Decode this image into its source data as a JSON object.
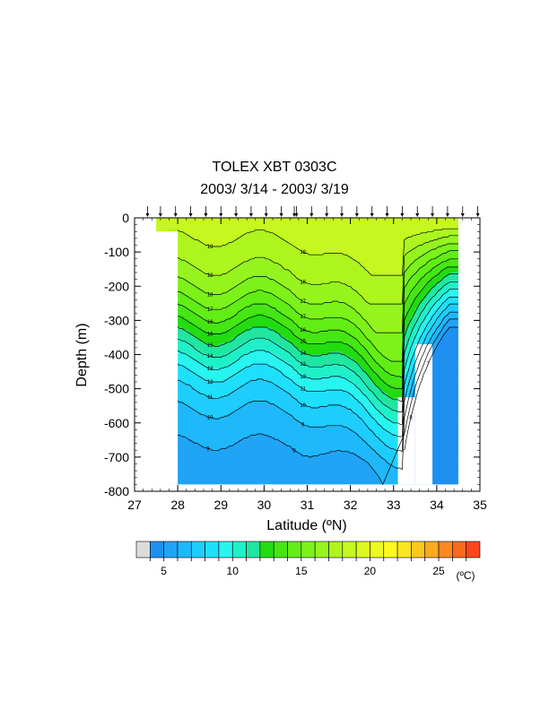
{
  "chart_data": {
    "type": "heatmap",
    "title": "TOLEX XBT 0303C",
    "subtitle": "2003/ 3/14 - 2003/ 3/19",
    "xlabel": "Latitude (ºN)",
    "ylabel": "Depth (m)",
    "xlim": [
      27,
      35
    ],
    "ylim": [
      -800,
      0
    ],
    "x_ticks": [
      "27",
      "28",
      "29",
      "30",
      "31",
      "32",
      "33",
      "34",
      "35"
    ],
    "y_ticks": [
      "0",
      "-100",
      "-200",
      "-300",
      "-400",
      "-500",
      "-600",
      "-700",
      "-800"
    ],
    "station_latitudes": [
      27.3,
      27.6,
      27.95,
      28.3,
      28.65,
      29.0,
      29.35,
      29.7,
      30.05,
      30.4,
      30.7,
      30.75,
      31.1,
      31.45,
      31.8,
      32.15,
      32.5,
      32.85,
      33.2,
      33.55,
      33.9,
      34.25,
      34.6,
      34.95
    ],
    "colorbar": {
      "levels": [
        4,
        5,
        6,
        7,
        8,
        9,
        10,
        11,
        12,
        13,
        14,
        15,
        16,
        17,
        18,
        19,
        20,
        21,
        22,
        23,
        24,
        25,
        26,
        27
      ],
      "colors": [
        "#dcdcdc",
        "#1e90f0",
        "#20a4f6",
        "#1eb8fb",
        "#1ecdfd",
        "#1ee0fd",
        "#28f4f0",
        "#20f0c8",
        "#20e6a0",
        "#22dc10",
        "#46e614",
        "#62ee14",
        "#7cf21a",
        "#96f41e",
        "#aef51e",
        "#c6f71e",
        "#dcf81e",
        "#eefa1e",
        "#fefa1e",
        "#fce61e",
        "#fcc81e",
        "#fcaa1e",
        "#fc8a1e",
        "#fc6a1e",
        "#fc461e"
      ],
      "tick_labels": [
        "5",
        "10",
        "15",
        "20",
        "25"
      ],
      "unit": "(ºC)"
    },
    "contour_labels": [
      "19",
      "18",
      "18",
      "18",
      "18",
      "17",
      "17",
      "17",
      "16",
      "16",
      "16",
      "15",
      "15",
      "14",
      "14",
      "13",
      "13",
      "12",
      "12",
      "11",
      "11",
      "10",
      "10",
      "9",
      "9",
      "8",
      "8",
      "7",
      "7",
      "6",
      "5"
    ],
    "grid": false
  }
}
